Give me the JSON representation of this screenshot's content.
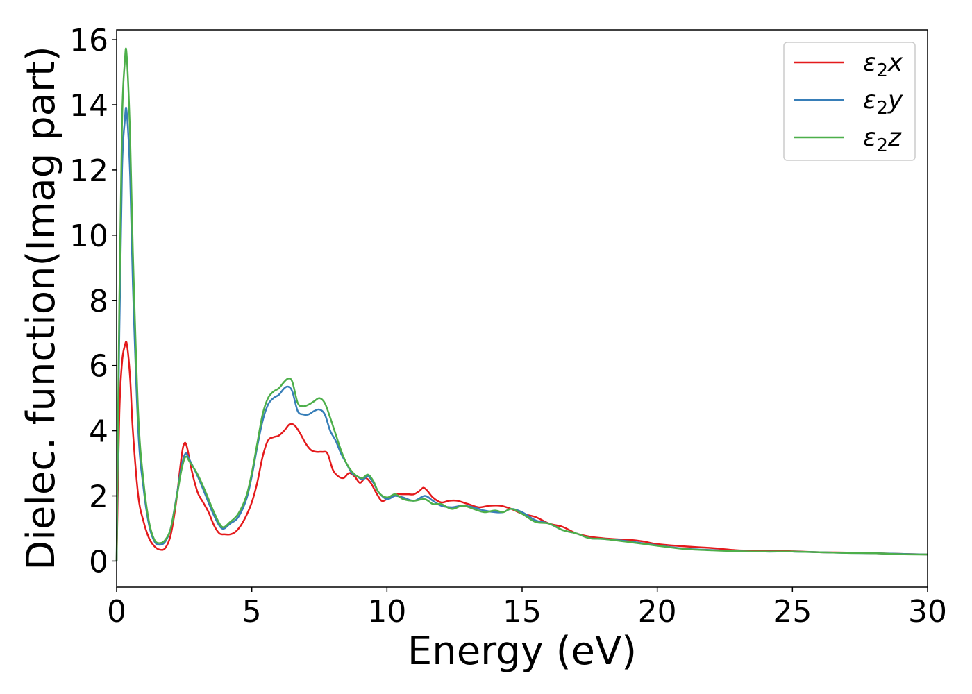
{
  "chart_data": {
    "type": "line",
    "title": "",
    "xlabel": "Energy (eV)",
    "ylabel": "Dielec. function(Imag part)",
    "xlim": [
      0,
      30
    ],
    "ylim": [
      -0.8,
      16.3
    ],
    "xticks": [
      0,
      5,
      10,
      15,
      20,
      25,
      30
    ],
    "yticks": [
      0,
      2,
      4,
      6,
      8,
      10,
      12,
      14,
      16
    ],
    "grid": false,
    "legend_position": "top-right",
    "series": [
      {
        "name": "ε₂x",
        "legend_base": "ε",
        "legend_sub": "2",
        "legend_tail": "x",
        "color": "#e41a1c",
        "x": [
          0,
          0.1,
          0.2,
          0.3,
          0.38,
          0.5,
          0.6,
          0.8,
          1.0,
          1.2,
          1.4,
          1.6,
          1.8,
          2.0,
          2.2,
          2.4,
          2.5,
          2.6,
          2.8,
          3.0,
          3.2,
          3.4,
          3.6,
          3.8,
          4.0,
          4.2,
          4.4,
          4.6,
          4.8,
          5.0,
          5.2,
          5.4,
          5.6,
          5.8,
          6.0,
          6.2,
          6.4,
          6.6,
          6.8,
          7.0,
          7.2,
          7.4,
          7.6,
          7.8,
          8.0,
          8.2,
          8.4,
          8.6,
          8.8,
          9.0,
          9.2,
          9.4,
          9.6,
          9.8,
          10.0,
          10.2,
          10.4,
          10.6,
          10.8,
          11.0,
          11.2,
          11.35,
          11.5,
          11.7,
          12.0,
          12.3,
          12.6,
          13.0,
          13.4,
          13.8,
          14.2,
          14.6,
          15.0,
          15.5,
          16.0,
          16.5,
          17.0,
          17.5,
          18.0,
          18.5,
          19.0,
          19.5,
          20.0,
          21.0,
          22.0,
          23.0,
          24.0,
          25.0,
          26.0,
          27.0,
          28.0,
          29.0,
          30.0
        ],
        "y": [
          0.0,
          4.5,
          6.1,
          6.6,
          6.65,
          5.6,
          4.0,
          2.0,
          1.2,
          0.7,
          0.45,
          0.35,
          0.4,
          0.8,
          1.8,
          3.2,
          3.6,
          3.5,
          2.7,
          2.1,
          1.8,
          1.5,
          1.1,
          0.85,
          0.82,
          0.82,
          0.9,
          1.1,
          1.4,
          1.8,
          2.4,
          3.2,
          3.7,
          3.8,
          3.85,
          4.0,
          4.2,
          4.15,
          3.9,
          3.6,
          3.4,
          3.35,
          3.35,
          3.3,
          2.8,
          2.6,
          2.55,
          2.7,
          2.6,
          2.4,
          2.55,
          2.4,
          2.1,
          1.85,
          1.9,
          2.0,
          2.05,
          2.05,
          2.05,
          2.05,
          2.15,
          2.25,
          2.15,
          1.95,
          1.8,
          1.85,
          1.85,
          1.75,
          1.65,
          1.7,
          1.7,
          1.6,
          1.45,
          1.35,
          1.15,
          1.05,
          0.85,
          0.75,
          0.7,
          0.67,
          0.65,
          0.6,
          0.52,
          0.45,
          0.4,
          0.33,
          0.32,
          0.3,
          0.27,
          0.26,
          0.24,
          0.22,
          0.2
        ]
      },
      {
        "name": "ε₂y",
        "legend_base": "ε",
        "legend_sub": "2",
        "legend_tail": "y",
        "color": "#377eb8",
        "x": [
          0,
          0.1,
          0.2,
          0.3,
          0.37,
          0.5,
          0.6,
          0.8,
          1.0,
          1.2,
          1.4,
          1.6,
          1.8,
          2.0,
          2.2,
          2.4,
          2.55,
          2.7,
          3.0,
          3.3,
          3.6,
          3.9,
          4.2,
          4.5,
          4.8,
          5.0,
          5.2,
          5.4,
          5.6,
          5.8,
          6.0,
          6.2,
          6.35,
          6.5,
          6.7,
          6.9,
          7.1,
          7.3,
          7.5,
          7.7,
          7.9,
          8.1,
          8.3,
          8.5,
          8.7,
          8.9,
          9.1,
          9.3,
          9.5,
          9.7,
          10.0,
          10.3,
          10.6,
          11.0,
          11.4,
          11.7,
          12.0,
          12.4,
          12.8,
          13.2,
          13.6,
          14.0,
          14.3,
          14.6,
          15.0,
          15.5,
          16.0,
          16.5,
          17.0,
          17.5,
          18.0,
          19.0,
          20.0,
          21.0,
          22.0,
          23.0,
          24.0,
          25.0,
          26.0,
          27.0,
          28.0,
          29.0,
          30.0
        ],
        "y": [
          0.0,
          7.0,
          12.0,
          13.5,
          13.8,
          11.8,
          8.5,
          4.0,
          2.2,
          1.1,
          0.6,
          0.5,
          0.6,
          1.0,
          1.9,
          2.9,
          3.3,
          3.1,
          2.6,
          2.0,
          1.4,
          1.0,
          1.15,
          1.35,
          1.9,
          2.6,
          3.5,
          4.3,
          4.8,
          5.0,
          5.1,
          5.3,
          5.35,
          5.2,
          4.6,
          4.5,
          4.5,
          4.6,
          4.65,
          4.5,
          4.0,
          3.7,
          3.3,
          3.0,
          2.7,
          2.6,
          2.5,
          2.6,
          2.4,
          2.1,
          1.9,
          2.0,
          1.95,
          1.85,
          2.0,
          1.85,
          1.7,
          1.65,
          1.7,
          1.65,
          1.55,
          1.5,
          1.5,
          1.6,
          1.5,
          1.25,
          1.15,
          0.95,
          0.85,
          0.7,
          0.68,
          0.6,
          0.48,
          0.38,
          0.34,
          0.3,
          0.29,
          0.29,
          0.27,
          0.25,
          0.24,
          0.22,
          0.2
        ]
      },
      {
        "name": "ε₂z",
        "legend_base": "ε",
        "legend_sub": "2",
        "legend_tail": "z",
        "color": "#4daf4a",
        "x": [
          0,
          0.1,
          0.2,
          0.3,
          0.37,
          0.5,
          0.6,
          0.8,
          1.0,
          1.2,
          1.4,
          1.6,
          1.8,
          2.0,
          2.2,
          2.4,
          2.55,
          2.7,
          3.0,
          3.3,
          3.6,
          3.9,
          4.2,
          4.5,
          4.8,
          5.0,
          5.2,
          5.4,
          5.6,
          5.8,
          6.0,
          6.2,
          6.35,
          6.5,
          6.7,
          6.9,
          7.1,
          7.3,
          7.5,
          7.7,
          7.9,
          8.1,
          8.3,
          8.5,
          8.7,
          8.9,
          9.1,
          9.3,
          9.5,
          9.7,
          10.0,
          10.3,
          10.6,
          11.0,
          11.4,
          11.7,
          12.0,
          12.4,
          12.8,
          13.2,
          13.6,
          14.0,
          14.3,
          14.6,
          15.0,
          15.5,
          16.0,
          16.5,
          17.0,
          17.5,
          18.0,
          19.0,
          20.0,
          21.0,
          22.0,
          23.0,
          24.0,
          25.0,
          26.0,
          27.0,
          28.0,
          29.0,
          30.0
        ],
        "y": [
          0.0,
          8.0,
          13.5,
          15.3,
          15.55,
          13.0,
          9.5,
          4.5,
          2.4,
          1.2,
          0.65,
          0.55,
          0.65,
          1.0,
          1.85,
          2.8,
          3.2,
          3.05,
          2.65,
          2.1,
          1.5,
          1.05,
          1.2,
          1.45,
          2.0,
          2.7,
          3.6,
          4.5,
          5.0,
          5.2,
          5.3,
          5.5,
          5.6,
          5.5,
          4.85,
          4.75,
          4.8,
          4.9,
          5.0,
          4.85,
          4.4,
          3.9,
          3.4,
          3.0,
          2.75,
          2.6,
          2.55,
          2.65,
          2.45,
          2.1,
          1.95,
          2.05,
          1.9,
          1.85,
          1.9,
          1.75,
          1.75,
          1.6,
          1.7,
          1.6,
          1.5,
          1.55,
          1.5,
          1.6,
          1.45,
          1.2,
          1.15,
          0.95,
          0.85,
          0.7,
          0.68,
          0.58,
          0.47,
          0.37,
          0.33,
          0.3,
          0.29,
          0.29,
          0.27,
          0.25,
          0.24,
          0.21,
          0.2
        ]
      }
    ]
  }
}
